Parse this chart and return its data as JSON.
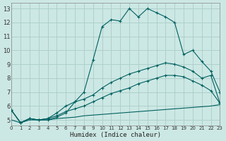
{
  "xlabel": "Humidex (Indice chaleur)",
  "bg_color": "#cce8e4",
  "grid_color": "#aaccc8",
  "line_color": "#006060",
  "xlim": [
    0,
    23
  ],
  "ylim": [
    4.6,
    13.4
  ],
  "xticks": [
    0,
    1,
    2,
    3,
    4,
    5,
    6,
    7,
    8,
    9,
    10,
    11,
    12,
    13,
    14,
    15,
    16,
    17,
    18,
    19,
    20,
    21,
    22,
    23
  ],
  "yticks": [
    5,
    6,
    7,
    8,
    9,
    10,
    11,
    12,
    13
  ],
  "line1_x": [
    0,
    1,
    2,
    3,
    4,
    5,
    6,
    7,
    8,
    9,
    10,
    11,
    12,
    13,
    14,
    15,
    16,
    17,
    18,
    19,
    20,
    21,
    22,
    23
  ],
  "line1_y": [
    5.7,
    4.8,
    5.1,
    5.0,
    5.0,
    5.2,
    5.5,
    6.3,
    7.0,
    9.3,
    11.7,
    12.2,
    12.1,
    13.0,
    12.4,
    13.0,
    12.7,
    12.4,
    12.0,
    9.7,
    10.0,
    9.2,
    8.5,
    7.0
  ],
  "line1_marker_x": [
    0,
    1,
    2,
    3,
    4,
    5,
    6,
    7,
    8,
    9,
    10,
    11,
    12,
    13,
    14,
    15,
    16,
    17,
    18,
    19,
    20,
    21,
    22,
    23
  ],
  "line2_x": [
    0,
    1,
    2,
    3,
    4,
    5,
    6,
    7,
    8,
    9,
    10,
    11,
    12,
    13,
    14,
    15,
    16,
    17,
    18,
    19,
    20,
    21,
    22,
    23
  ],
  "line2_y": [
    5.7,
    4.8,
    5.1,
    5.0,
    5.1,
    5.5,
    6.0,
    6.3,
    6.5,
    6.8,
    7.3,
    7.7,
    8.0,
    8.3,
    8.5,
    8.7,
    8.9,
    9.1,
    9.0,
    8.8,
    8.5,
    8.0,
    8.2,
    6.2
  ],
  "line3_x": [
    0,
    1,
    2,
    3,
    4,
    5,
    6,
    7,
    8,
    9,
    10,
    11,
    12,
    13,
    14,
    15,
    16,
    17,
    18,
    19,
    20,
    21,
    22,
    23
  ],
  "line3_y": [
    5.7,
    4.8,
    5.1,
    5.0,
    5.1,
    5.3,
    5.6,
    5.8,
    6.0,
    6.3,
    6.6,
    6.9,
    7.1,
    7.3,
    7.6,
    7.8,
    8.0,
    8.2,
    8.2,
    8.1,
    7.8,
    7.5,
    7.1,
    6.2
  ],
  "line4_x": [
    0,
    1,
    2,
    3,
    4,
    5,
    6,
    7,
    8,
    9,
    10,
    11,
    12,
    13,
    14,
    15,
    16,
    17,
    18,
    19,
    20,
    21,
    22,
    23
  ],
  "line4_y": [
    5.0,
    4.8,
    5.0,
    5.0,
    5.0,
    5.1,
    5.15,
    5.2,
    5.3,
    5.35,
    5.4,
    5.45,
    5.5,
    5.55,
    5.6,
    5.65,
    5.7,
    5.75,
    5.8,
    5.85,
    5.9,
    5.95,
    6.0,
    6.1
  ]
}
